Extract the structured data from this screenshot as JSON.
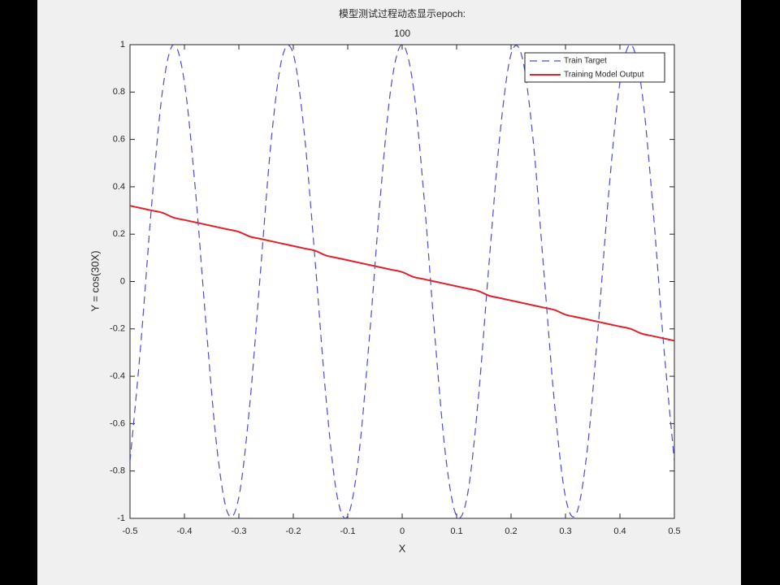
{
  "chart_data": {
    "type": "line",
    "title": [
      "模型测试过程动态显示epoch:",
      "100"
    ],
    "xlabel": "X",
    "ylabel": "Y = cos(30X)",
    "x": [
      -0.5,
      -0.48,
      -0.46,
      -0.44,
      -0.42,
      -0.4,
      -0.38,
      -0.36,
      -0.34,
      -0.32,
      -0.3,
      -0.28,
      -0.26,
      -0.24,
      -0.22,
      -0.2,
      -0.18,
      -0.16,
      -0.14,
      -0.12,
      -0.1,
      -0.08,
      -0.06,
      -0.04,
      -0.02,
      0,
      0.02,
      0.04,
      0.06,
      0.08,
      0.1,
      0.12,
      0.14,
      0.16,
      0.18,
      0.2,
      0.22,
      0.24,
      0.26,
      0.28,
      0.3,
      0.32,
      0.34,
      0.36,
      0.38,
      0.4,
      0.42,
      0.44,
      0.46,
      0.48,
      0.5
    ],
    "series": [
      {
        "name": "Train Target",
        "color": "#4b4bd8",
        "line_style": "dashed",
        "values": [
          -0.76,
          -0.26,
          0.33,
          0.81,
          1.0,
          0.84,
          0.39,
          -0.19,
          -0.71,
          -0.98,
          -0.91,
          -0.52,
          0.05,
          0.61,
          0.95,
          0.96,
          0.63,
          0.09,
          -0.49,
          -0.9,
          -0.99,
          -0.74,
          -0.23,
          0.36,
          0.83,
          1.0,
          0.83,
          0.36,
          -0.23,
          -0.74,
          -0.99,
          -0.9,
          -0.49,
          0.09,
          0.63,
          0.96,
          0.95,
          0.61,
          0.05,
          -0.52,
          -0.91,
          -0.98,
          -0.71,
          -0.19,
          0.39,
          0.84,
          1.0,
          0.81,
          0.33,
          -0.26,
          -0.76
        ]
      },
      {
        "name": "Training Model Output",
        "color": "#e0202a",
        "line_style": "solid",
        "values": [
          0.32,
          0.31,
          0.3,
          0.29,
          0.27,
          0.26,
          0.25,
          0.24,
          0.23,
          0.22,
          0.21,
          0.19,
          0.18,
          0.17,
          0.16,
          0.15,
          0.14,
          0.13,
          0.11,
          0.1,
          0.09,
          0.08,
          0.07,
          0.06,
          0.05,
          0.04,
          0.02,
          0.01,
          0,
          -0.01,
          -0.02,
          -0.03,
          -0.04,
          -0.06,
          -0.07,
          -0.08,
          -0.09,
          -0.1,
          -0.11,
          -0.12,
          -0.14,
          -0.15,
          -0.16,
          -0.17,
          -0.18,
          -0.19,
          -0.2,
          -0.22,
          -0.23,
          -0.24,
          -0.25
        ]
      }
    ],
    "xlim": [
      -0.5,
      0.5
    ],
    "xticks": [
      -0.5,
      -0.4,
      -0.3,
      -0.2,
      -0.1,
      0,
      0.1,
      0.2,
      0.3,
      0.4,
      0.5
    ],
    "ylim": [
      -1,
      1
    ],
    "yticks": [
      -1,
      -0.8,
      -0.6,
      -0.4,
      -0.2,
      0,
      0.2,
      0.4,
      0.6,
      0.8,
      1
    ],
    "grid": false,
    "legend": "northeast"
  }
}
